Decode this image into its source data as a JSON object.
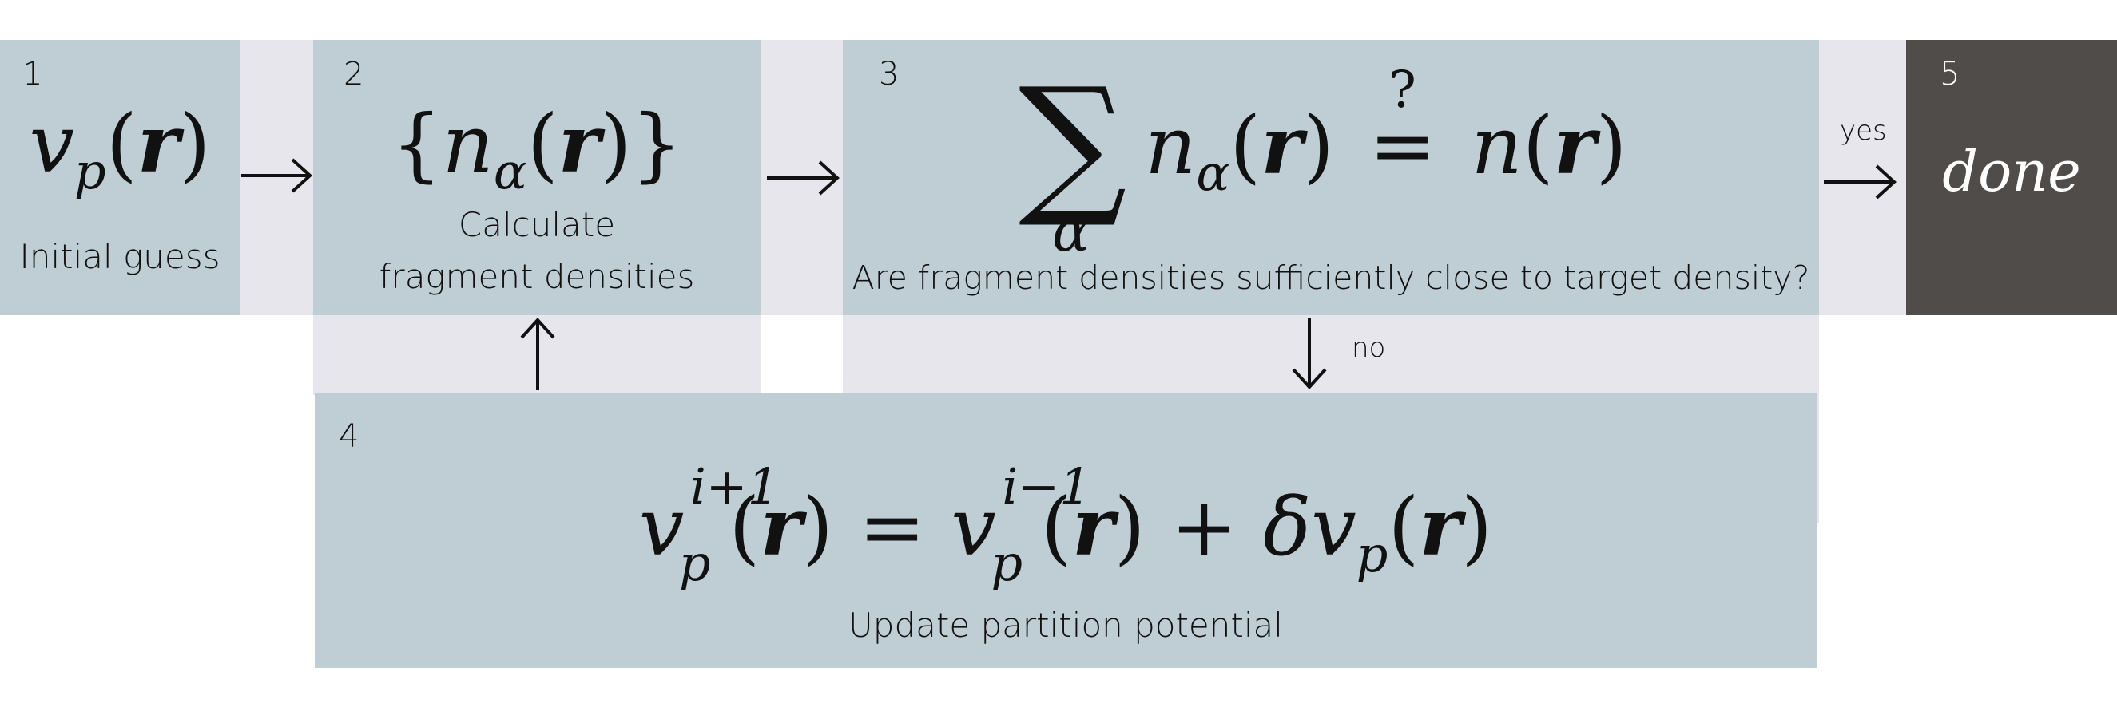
{
  "diagram": {
    "steps": [
      {
        "id": "1",
        "caption": "Initial guess",
        "formula_symbol": "v",
        "formula_sub": "p",
        "formula_arg": "r"
      },
      {
        "id": "2",
        "caption_line1": "Calculate",
        "caption_line2": "fragment densities",
        "formula_symbol": "n",
        "formula_sub": "α",
        "formula_arg": "r"
      },
      {
        "id": "3",
        "caption": "Are fragment densities sufficiently close to target density?",
        "sum_index": "α",
        "formula_symbol": "n",
        "formula_sub": "α",
        "formula_arg": "r",
        "question": "?",
        "target_symbol": "n"
      },
      {
        "id": "4",
        "caption": "Update partition potential",
        "lhs_sup": "i+1",
        "rhs_sup": "i−1",
        "delta": "δ",
        "formula_symbol": "v",
        "formula_sub": "p",
        "formula_arg": "r"
      },
      {
        "id": "5",
        "caption": "done"
      }
    ],
    "edge_labels": {
      "yes": "yes",
      "no": "no"
    }
  }
}
